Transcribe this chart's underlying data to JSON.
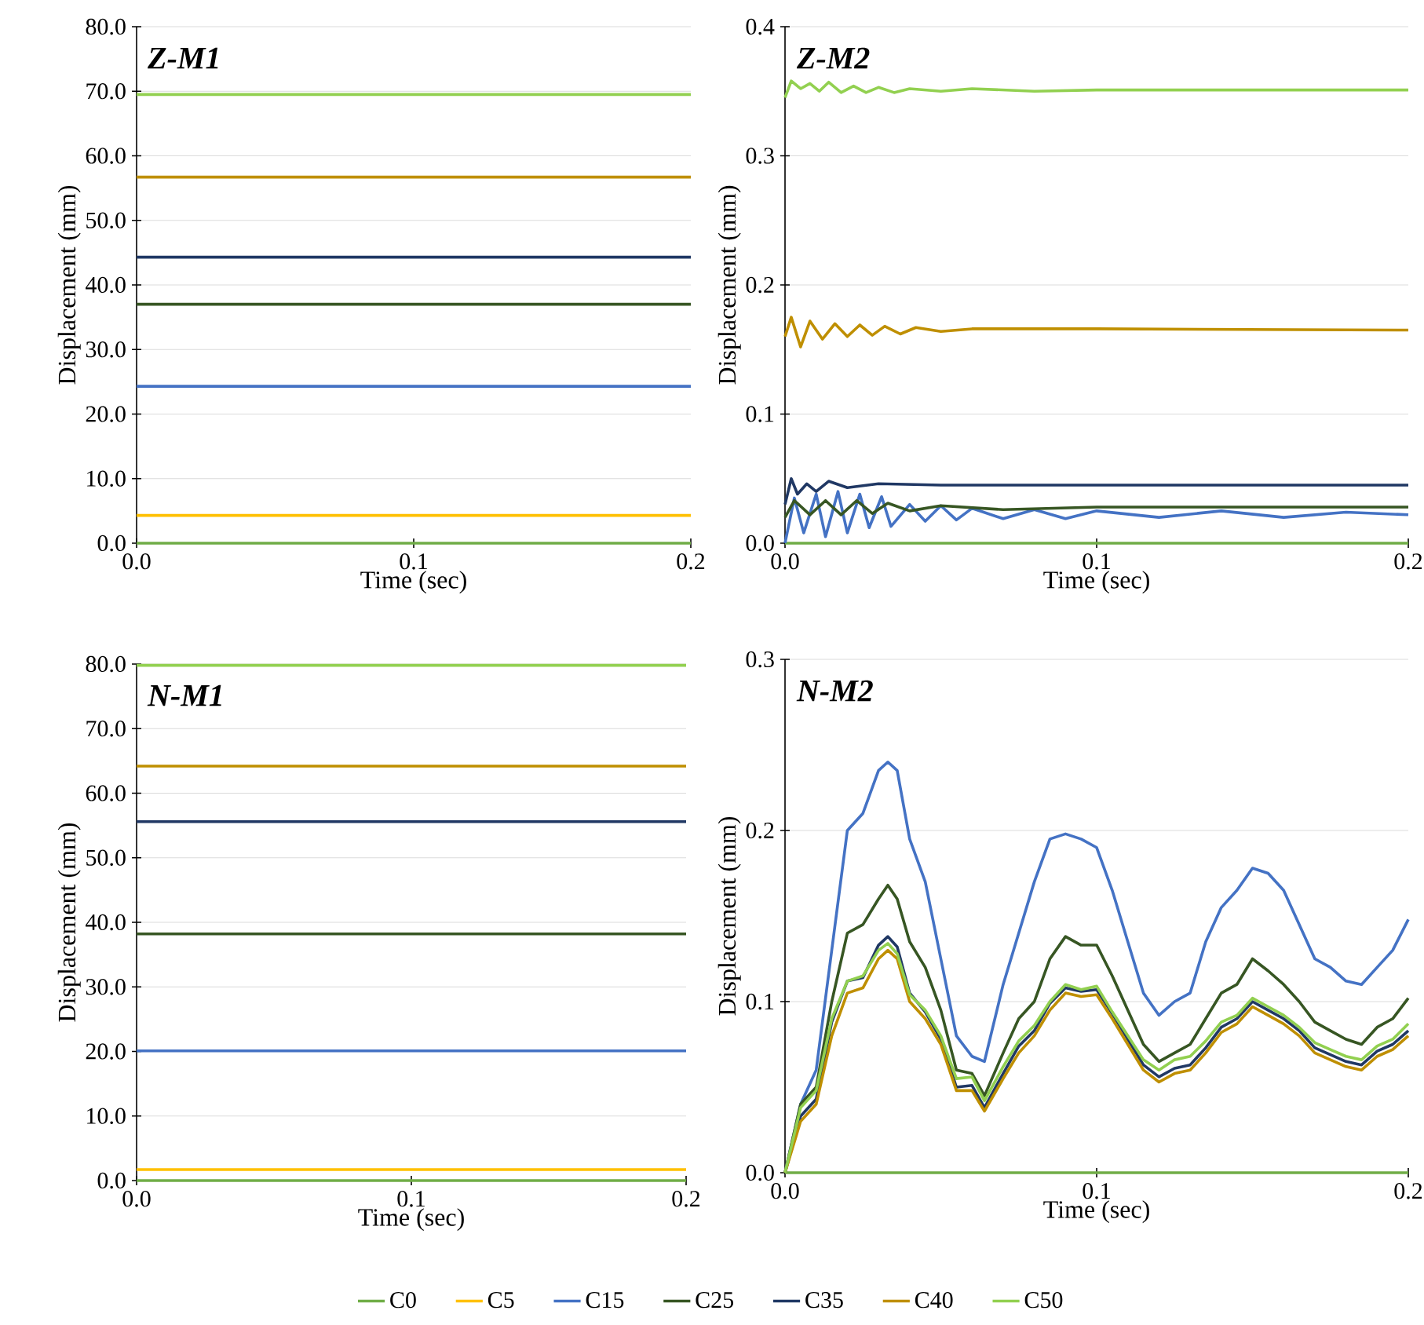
{
  "chart_data": [
    {
      "type": "line",
      "title": "Z-M1",
      "xlabel": "Time (sec)",
      "ylabel": "Displacement  (mm)",
      "x": [
        0,
        0.2
      ],
      "xlim": [
        0,
        0.2
      ],
      "ylim": [
        0,
        80
      ],
      "grid": "y",
      "xticks": [
        {
          "value": 0,
          "label": "0.0"
        },
        {
          "value": 0.1,
          "label": "0.1"
        },
        {
          "value": 0.2,
          "label": "0.2"
        }
      ],
      "yticks": [
        {
          "value": 0,
          "label": "0.0"
        },
        {
          "value": 10,
          "label": "10.0"
        },
        {
          "value": 20,
          "label": "20.0"
        },
        {
          "value": 30,
          "label": "30.0"
        },
        {
          "value": 40,
          "label": "40.0"
        },
        {
          "value": 50,
          "label": "50.0"
        },
        {
          "value": 60,
          "label": "60.0"
        },
        {
          "value": 70,
          "label": "70.0"
        },
        {
          "value": 80,
          "label": "80.0"
        }
      ],
      "series": [
        {
          "color": "#70ad47",
          "values": [
            0,
            0
          ]
        },
        {
          "color": "#ffc000",
          "values": [
            4.3,
            4.3
          ]
        },
        {
          "color": "#4472c4",
          "values": [
            24.3,
            24.3
          ]
        },
        {
          "color": "#375623",
          "values": [
            37.0,
            37.0
          ]
        },
        {
          "color": "#203864",
          "values": [
            44.3,
            44.3
          ]
        },
        {
          "color": "#bf8f00",
          "values": [
            56.7,
            56.7
          ]
        },
        {
          "color": "#92d050",
          "values": [
            69.5,
            69.5
          ]
        }
      ]
    },
    {
      "type": "line",
      "title": "Z-M2",
      "xlabel": "Time (sec)",
      "ylabel": "Displacement  (mm)",
      "xlim": [
        0,
        0.2
      ],
      "ylim": [
        0,
        0.4
      ],
      "grid": "y",
      "xticks": [
        {
          "value": 0,
          "label": "0.0"
        },
        {
          "value": 0.1,
          "label": "0.1"
        },
        {
          "value": 0.2,
          "label": "0.2"
        }
      ],
      "yticks": [
        {
          "value": 0,
          "label": "0.0"
        },
        {
          "value": 0.1,
          "label": "0.1"
        },
        {
          "value": 0.2,
          "label": "0.2"
        },
        {
          "value": 0.3,
          "label": "0.3"
        },
        {
          "value": 0.4,
          "label": "0.4"
        }
      ],
      "series": [
        {
          "color": "#70ad47",
          "x": [
            0,
            0.2
          ],
          "values": [
            0,
            0
          ]
        },
        {
          "color": "#4472c4",
          "x": [
            0,
            0.003,
            0.006,
            0.01,
            0.013,
            0.017,
            0.02,
            0.024,
            0.027,
            0.031,
            0.034,
            0.04,
            0.045,
            0.05,
            0.055,
            0.06,
            0.07,
            0.08,
            0.09,
            0.1,
            0.12,
            0.14,
            0.16,
            0.18,
            0.2
          ],
          "values": [
            0,
            0.035,
            0.008,
            0.038,
            0.005,
            0.04,
            0.008,
            0.038,
            0.012,
            0.036,
            0.013,
            0.03,
            0.017,
            0.029,
            0.018,
            0.027,
            0.019,
            0.026,
            0.019,
            0.025,
            0.02,
            0.025,
            0.02,
            0.024,
            0.022
          ]
        },
        {
          "color": "#375623",
          "x": [
            0,
            0.003,
            0.008,
            0.013,
            0.018,
            0.023,
            0.028,
            0.033,
            0.04,
            0.05,
            0.07,
            0.1,
            0.2
          ],
          "values": [
            0.02,
            0.033,
            0.022,
            0.033,
            0.022,
            0.033,
            0.023,
            0.031,
            0.025,
            0.029,
            0.026,
            0.028,
            0.028
          ]
        },
        {
          "color": "#203864",
          "x": [
            0,
            0.002,
            0.004,
            0.007,
            0.01,
            0.014,
            0.02,
            0.03,
            0.05,
            0.2
          ],
          "values": [
            0.03,
            0.05,
            0.038,
            0.046,
            0.04,
            0.048,
            0.043,
            0.046,
            0.045,
            0.045
          ]
        },
        {
          "color": "#bf8f00",
          "x": [
            0,
            0.002,
            0.005,
            0.008,
            0.012,
            0.016,
            0.02,
            0.024,
            0.028,
            0.032,
            0.037,
            0.042,
            0.05,
            0.06,
            0.1,
            0.2
          ],
          "values": [
            0.16,
            0.175,
            0.152,
            0.172,
            0.158,
            0.17,
            0.16,
            0.169,
            0.161,
            0.168,
            0.162,
            0.167,
            0.164,
            0.166,
            0.166,
            0.165
          ]
        },
        {
          "color": "#92d050",
          "x": [
            0,
            0.002,
            0.005,
            0.008,
            0.011,
            0.014,
            0.018,
            0.022,
            0.026,
            0.03,
            0.035,
            0.04,
            0.05,
            0.06,
            0.08,
            0.1,
            0.2
          ],
          "values": [
            0.345,
            0.358,
            0.352,
            0.356,
            0.35,
            0.357,
            0.349,
            0.354,
            0.349,
            0.353,
            0.349,
            0.352,
            0.35,
            0.352,
            0.35,
            0.351,
            0.351
          ]
        }
      ]
    },
    {
      "type": "line",
      "title": "N-M1",
      "xlabel": "Time (sec)",
      "ylabel": "Displacement  (mm)",
      "x": [
        0,
        0.2
      ],
      "xlim": [
        0,
        0.2
      ],
      "ylim": [
        0,
        80
      ],
      "grid": "y",
      "xticks": [
        {
          "value": 0,
          "label": "0.0"
        },
        {
          "value": 0.1,
          "label": "0.1"
        },
        {
          "value": 0.2,
          "label": "0.2"
        }
      ],
      "yticks": [
        {
          "value": 0,
          "label": "0.0"
        },
        {
          "value": 10,
          "label": "10.0"
        },
        {
          "value": 20,
          "label": "20.0"
        },
        {
          "value": 30,
          "label": "30.0"
        },
        {
          "value": 40,
          "label": "40.0"
        },
        {
          "value": 50,
          "label": "50.0"
        },
        {
          "value": 60,
          "label": "60.0"
        },
        {
          "value": 70,
          "label": "70.0"
        },
        {
          "value": 80,
          "label": "80.0"
        }
      ],
      "series": [
        {
          "color": "#70ad47",
          "values": [
            0,
            0
          ]
        },
        {
          "color": "#ffc000",
          "values": [
            1.7,
            1.7
          ]
        },
        {
          "color": "#4472c4",
          "values": [
            20.1,
            20.1
          ]
        },
        {
          "color": "#375623",
          "values": [
            38.2,
            38.2
          ]
        },
        {
          "color": "#203864",
          "values": [
            55.6,
            55.6
          ]
        },
        {
          "color": "#bf8f00",
          "values": [
            64.2,
            64.2
          ]
        },
        {
          "color": "#92d050",
          "values": [
            79.8,
            79.8
          ]
        }
      ]
    },
    {
      "type": "line",
      "title": "N-M2",
      "xlabel": "Time (sec)",
      "ylabel": "Displacement  (mm)",
      "x": [
        0,
        0.005,
        0.01,
        0.015,
        0.02,
        0.025,
        0.03,
        0.033,
        0.036,
        0.04,
        0.045,
        0.05,
        0.055,
        0.06,
        0.064,
        0.07,
        0.075,
        0.08,
        0.085,
        0.09,
        0.095,
        0.1,
        0.105,
        0.11,
        0.115,
        0.12,
        0.125,
        0.13,
        0.135,
        0.14,
        0.145,
        0.15,
        0.155,
        0.16,
        0.165,
        0.17,
        0.175,
        0.18,
        0.185,
        0.19,
        0.195,
        0.2
      ],
      "xlim": [
        0,
        0.2
      ],
      "ylim": [
        0,
        0.3
      ],
      "grid": "y",
      "legend": "bottom",
      "xticks": [
        {
          "value": 0,
          "label": "0.0"
        },
        {
          "value": 0.1,
          "label": "0.1"
        },
        {
          "value": 0.2,
          "label": "0.2"
        }
      ],
      "yticks": [
        {
          "value": 0,
          "label": "0.0"
        },
        {
          "value": 0.1,
          "label": "0.1"
        },
        {
          "value": 0.2,
          "label": "0.2"
        },
        {
          "value": 0.3,
          "label": "0.3"
        }
      ],
      "series": [
        {
          "name": "C0",
          "color": "#70ad47",
          "x": [
            0,
            0.2
          ],
          "values": [
            0,
            0
          ]
        },
        {
          "name": "C5",
          "color": "#ffc000",
          "values": [
            null,
            null,
            null,
            null,
            null,
            null,
            null,
            null,
            null,
            null,
            null,
            null,
            null,
            null,
            null,
            null,
            null,
            null,
            null,
            null,
            null,
            null,
            null,
            null,
            null,
            null,
            null,
            null,
            null,
            null,
            null,
            null,
            null,
            null,
            null,
            null,
            null,
            null,
            null,
            null,
            null,
            null
          ]
        },
        {
          "name": "C15",
          "color": "#4472c4",
          "values": [
            0,
            0.04,
            0.06,
            0.13,
            0.2,
            0.21,
            0.235,
            0.24,
            0.235,
            0.195,
            0.17,
            0.125,
            0.08,
            0.068,
            0.065,
            0.11,
            0.14,
            0.17,
            0.195,
            0.198,
            0.195,
            0.19,
            0.165,
            0.135,
            0.105,
            0.092,
            0.1,
            0.105,
            0.135,
            0.155,
            0.165,
            0.178,
            0.175,
            0.165,
            0.145,
            0.125,
            0.12,
            0.112,
            0.11,
            0.12,
            0.13,
            0.148
          ]
        },
        {
          "name": "C25",
          "color": "#375623",
          "values": [
            0,
            0.04,
            0.05,
            0.1,
            0.14,
            0.145,
            0.16,
            0.168,
            0.16,
            0.135,
            0.12,
            0.095,
            0.06,
            0.058,
            0.045,
            0.07,
            0.09,
            0.1,
            0.125,
            0.138,
            0.133,
            0.133,
            0.115,
            0.095,
            0.075,
            0.065,
            0.07,
            0.075,
            0.09,
            0.105,
            0.11,
            0.125,
            0.118,
            0.11,
            0.1,
            0.088,
            0.083,
            0.078,
            0.075,
            0.085,
            0.09,
            0.102
          ]
        },
        {
          "name": "C35",
          "color": "#203864",
          "values": [
            0,
            0.033,
            0.043,
            0.088,
            0.112,
            0.114,
            0.133,
            0.138,
            0.132,
            0.105,
            0.094,
            0.078,
            0.05,
            0.051,
            0.038,
            0.058,
            0.074,
            0.083,
            0.099,
            0.108,
            0.106,
            0.107,
            0.093,
            0.078,
            0.063,
            0.056,
            0.061,
            0.063,
            0.073,
            0.085,
            0.09,
            0.1,
            0.095,
            0.09,
            0.083,
            0.073,
            0.069,
            0.065,
            0.063,
            0.071,
            0.075,
            0.083
          ]
        },
        {
          "name": "C40",
          "color": "#bf8f00",
          "values": [
            0,
            0.03,
            0.04,
            0.08,
            0.105,
            0.108,
            0.125,
            0.13,
            0.125,
            0.1,
            0.09,
            0.075,
            0.048,
            0.048,
            0.036,
            0.055,
            0.07,
            0.08,
            0.095,
            0.105,
            0.103,
            0.104,
            0.09,
            0.075,
            0.06,
            0.053,
            0.058,
            0.06,
            0.07,
            0.082,
            0.087,
            0.097,
            0.092,
            0.087,
            0.08,
            0.07,
            0.066,
            0.062,
            0.06,
            0.068,
            0.072,
            0.08
          ]
        },
        {
          "name": "C50",
          "color": "#92d050",
          "values": [
            0,
            0.038,
            0.048,
            0.09,
            0.112,
            0.115,
            0.13,
            0.134,
            0.128,
            0.104,
            0.095,
            0.08,
            0.055,
            0.056,
            0.042,
            0.062,
            0.077,
            0.086,
            0.1,
            0.11,
            0.107,
            0.109,
            0.094,
            0.08,
            0.066,
            0.06,
            0.066,
            0.068,
            0.077,
            0.088,
            0.092,
            0.102,
            0.097,
            0.092,
            0.085,
            0.076,
            0.072,
            0.068,
            0.066,
            0.074,
            0.078,
            0.087
          ]
        }
      ]
    }
  ]
}
